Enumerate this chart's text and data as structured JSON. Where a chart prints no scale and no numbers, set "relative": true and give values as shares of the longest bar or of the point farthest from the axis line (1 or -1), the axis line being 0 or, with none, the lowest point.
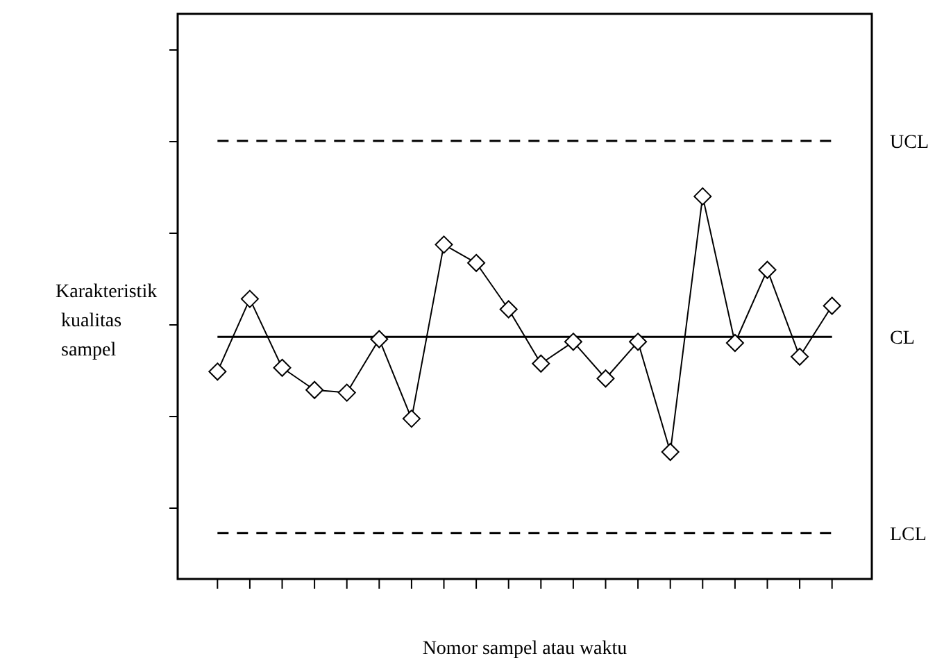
{
  "chart_data": {
    "type": "line",
    "relative": true,
    "xlabel": "Nomor sampel atau waktu",
    "ylabel": "Karakteristik kualitas sampel",
    "categories": [
      null,
      null,
      null,
      null,
      null,
      null,
      null,
      null,
      null,
      null,
      null,
      null,
      null,
      null,
      null,
      null,
      null,
      null,
      null,
      null
    ],
    "series": [
      {
        "color": "#000000",
        "values": [
          0.542,
          0.732,
          0.552,
          0.494,
          0.487,
          0.627,
          0.419,
          0.874,
          0.826,
          0.705,
          0.563,
          0.62,
          0.524,
          0.62,
          0.332,
          1,
          0.617,
          0.808,
          0.581,
          0.714
        ]
      }
    ],
    "marker": "diamond",
    "line_style": "solid",
    "ref_lines": [
      {
        "axis": "y",
        "value": 1.145,
        "label": "UCL",
        "line_style": "dashed"
      },
      {
        "axis": "y",
        "value": 0.633,
        "label": "CL",
        "line_style": "solid"
      },
      {
        "axis": "y",
        "value": 0.12,
        "label": "LCL",
        "line_style": "dashed"
      }
    ]
  }
}
